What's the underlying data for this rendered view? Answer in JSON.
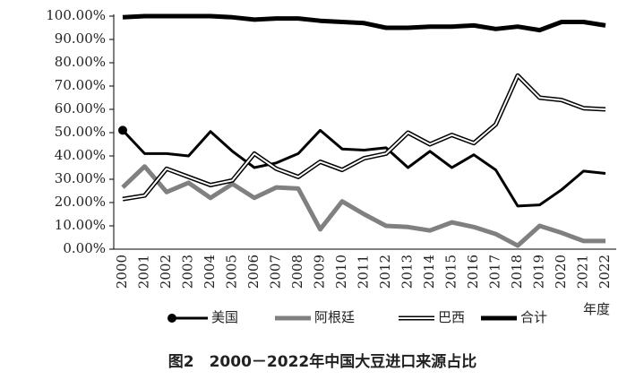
{
  "chart_data": {
    "type": "line",
    "title": "图2　2000－2022年中国大豆进口来源占比",
    "x_label": "年度",
    "categories": [
      "2000",
      "2001",
      "2002",
      "2003",
      "2004",
      "2005",
      "2006",
      "2007",
      "2008",
      "2009",
      "2010",
      "2011",
      "2012",
      "2013",
      "2014",
      "2015",
      "2016",
      "2017",
      "2018",
      "2019",
      "2020",
      "2021",
      "2022"
    ],
    "series": [
      {
        "name": "美国",
        "color": "#000000",
        "width": 3,
        "start_marker": true,
        "values": [
          51,
          41,
          41,
          40,
          50.5,
          42,
          35,
          37,
          41,
          51,
          43,
          42.5,
          43.5,
          35,
          42,
          35,
          40.5,
          34,
          18.5,
          19,
          25.5,
          33.5,
          32.5
        ]
      },
      {
        "name": "阿根廷",
        "color": "#808080",
        "width": 5,
        "values": [
          26.5,
          35.5,
          24.5,
          28.5,
          22,
          28,
          22,
          26.5,
          26,
          8.5,
          20.5,
          15,
          10,
          9.5,
          8,
          11.5,
          9.5,
          6.5,
          1.5,
          10,
          7,
          3.5,
          3.5
        ]
      },
      {
        "name": "巴西",
        "color": "#ffffff",
        "outline": "#000000",
        "width": 2,
        "values": [
          21.5,
          23,
          34.5,
          31,
          27.5,
          29.5,
          41,
          34.5,
          31,
          37.5,
          34,
          39,
          41,
          50,
          45,
          49,
          45.5,
          53.5,
          74.5,
          65,
          64,
          60.5,
          60
        ]
      },
      {
        "name": "合计",
        "color": "#000000",
        "width": 5,
        "values": [
          99.5,
          100,
          100,
          100,
          100,
          99.5,
          98.5,
          99,
          99,
          98,
          97.5,
          97,
          95,
          95,
          95.5,
          95.5,
          96,
          94.5,
          95.5,
          94,
          97.5,
          97.5,
          96
        ]
      }
    ],
    "ylim": [
      0,
      100
    ],
    "yticks": [
      {
        "value": 0,
        "label": "0.00%"
      },
      {
        "value": 10,
        "label": "10.00%"
      },
      {
        "value": 20,
        "label": "20.00%"
      },
      {
        "value": 30,
        "label": "30.00%"
      },
      {
        "value": 40,
        "label": "40.00%"
      },
      {
        "value": 50,
        "label": "50.00%"
      },
      {
        "value": 60,
        "label": "60.00%"
      },
      {
        "value": 70,
        "label": "70.00%"
      },
      {
        "value": 80,
        "label": "80.00%"
      },
      {
        "value": 90,
        "label": "90.00%"
      },
      {
        "value": 100,
        "label": "100.00%"
      }
    ]
  }
}
